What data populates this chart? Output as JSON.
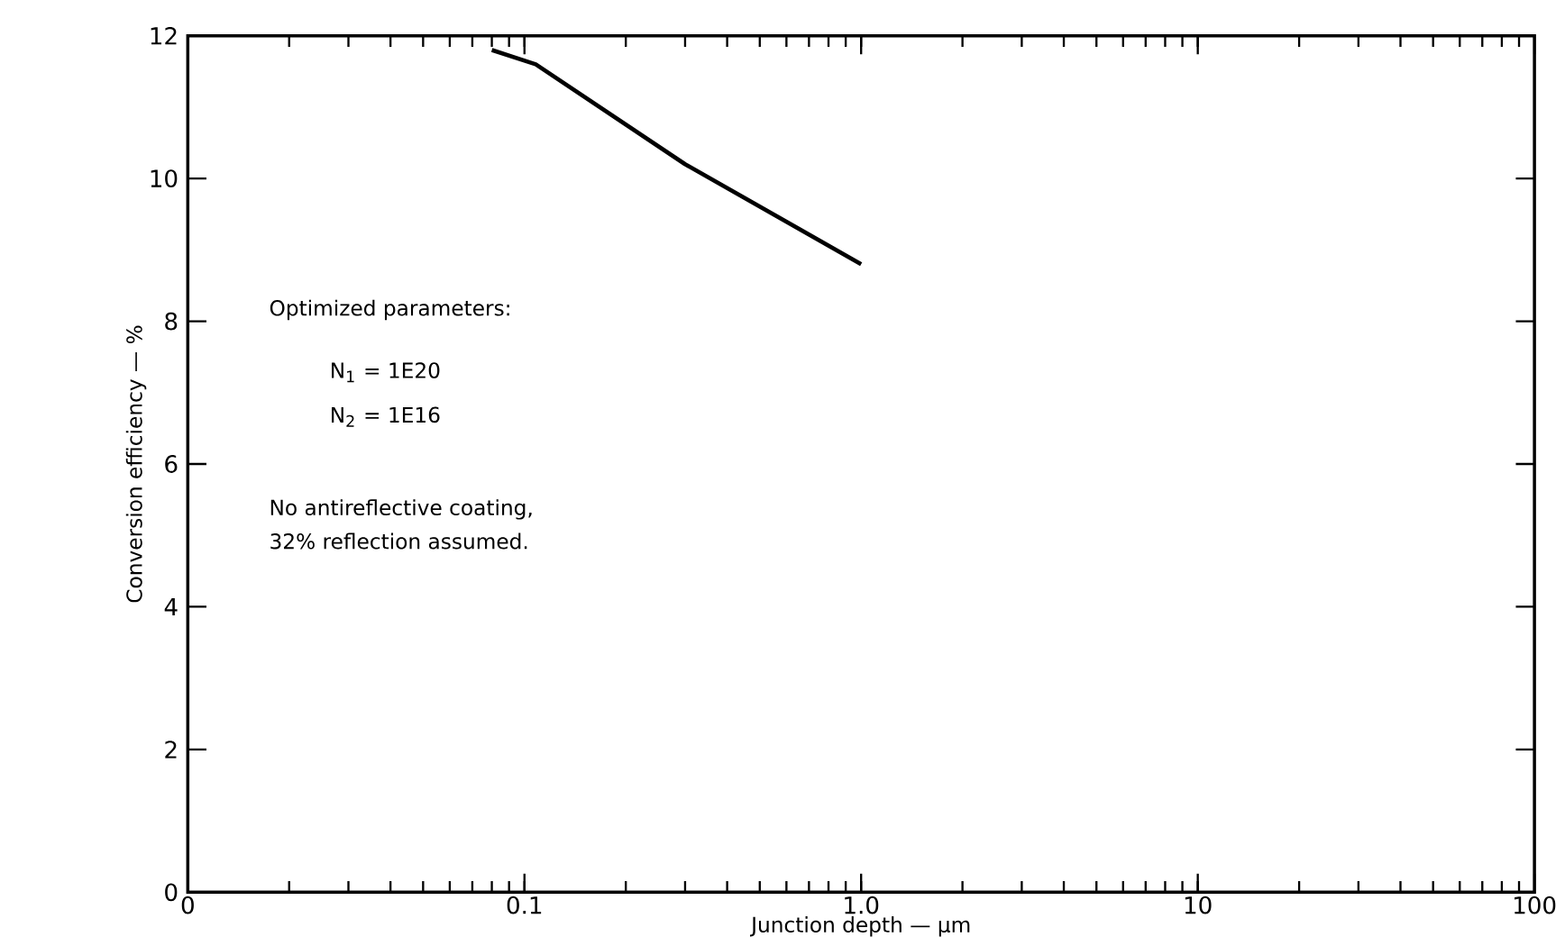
{
  "chart_data": {
    "type": "line",
    "xlabel": "Junction depth — µm",
    "ylabel": "Conversion efficiency — %",
    "log": "x",
    "grid": false,
    "marker": "none",
    "line_style": "solid",
    "xlim": [
      0.01,
      100
    ],
    "ylim": [
      0,
      12
    ],
    "xticks": [
      {
        "value": 0.01,
        "label": "0"
      },
      0.1,
      {
        "value": 1,
        "label": "1.0"
      },
      10,
      100
    ],
    "yticks": [
      0,
      2,
      4,
      6,
      8,
      10,
      12
    ],
    "series": [
      {
        "color": "#000000",
        "x": [
          0.08,
          0.108,
          0.3,
          1.0
        ],
        "values": [
          11.8,
          11.6,
          10.2,
          8.8
        ]
      }
    ],
    "annotations": [
      "Optimized parameters:",
      "N$_{1}$ = 1E20",
      "N$_{2}$ = 1E16",
      "No antireflective coating,",
      "32% reflection assumed."
    ]
  }
}
